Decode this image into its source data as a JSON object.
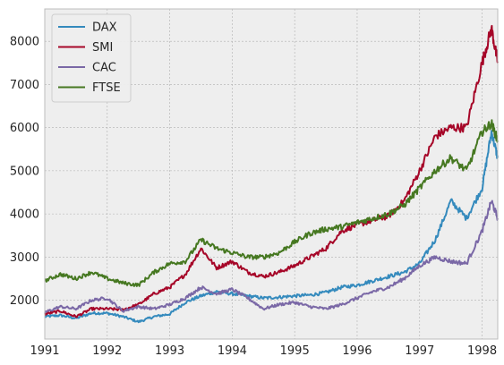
{
  "colors": {
    "background": "#eeeeee",
    "grid": "#b0b0b0",
    "DAX": "#348abd",
    "SMI": "#a60628",
    "CAC": "#7a68a6",
    "FTSE": "#467821"
  },
  "chart_data": {
    "type": "line",
    "title": "",
    "xlabel": "",
    "ylabel": "",
    "xlim": [
      1991.0,
      1998.25
    ],
    "ylim": [
      1100,
      8750
    ],
    "grid": true,
    "legend_position": "top-left",
    "x_ticks": [
      1991,
      1992,
      1993,
      1994,
      1995,
      1996,
      1997,
      1998
    ],
    "y_ticks": [
      2000,
      3000,
      4000,
      5000,
      6000,
      7000,
      8000
    ],
    "series": [
      {
        "name": "DAX",
        "color_key": "DAX",
        "x": [
          1991.0,
          1991.25,
          1991.5,
          1991.75,
          1992.0,
          1992.25,
          1992.5,
          1992.75,
          1993.0,
          1993.25,
          1993.5,
          1993.75,
          1994.0,
          1994.25,
          1994.5,
          1994.75,
          1995.0,
          1995.25,
          1995.5,
          1995.75,
          1996.0,
          1996.25,
          1996.5,
          1996.75,
          1997.0,
          1997.25,
          1997.5,
          1997.75,
          1998.0,
          1998.15,
          1998.25
        ],
        "y": [
          1620,
          1650,
          1580,
          1700,
          1700,
          1620,
          1500,
          1620,
          1680,
          1950,
          2100,
          2200,
          2150,
          2100,
          2050,
          2070,
          2100,
          2120,
          2180,
          2300,
          2350,
          2450,
          2550,
          2650,
          2850,
          3400,
          4300,
          3900,
          4600,
          5900,
          5300
        ]
      },
      {
        "name": "SMI",
        "color_key": "SMI",
        "x": [
          1991.0,
          1991.25,
          1991.5,
          1991.75,
          1992.0,
          1992.25,
          1992.5,
          1992.75,
          1993.0,
          1993.25,
          1993.5,
          1993.75,
          1994.0,
          1994.25,
          1994.5,
          1994.75,
          1995.0,
          1995.25,
          1995.5,
          1995.75,
          1996.0,
          1996.25,
          1996.5,
          1996.75,
          1997.0,
          1997.25,
          1997.5,
          1997.75,
          1998.0,
          1998.15,
          1998.25
        ],
        "y": [
          1680,
          1750,
          1620,
          1800,
          1800,
          1780,
          1900,
          2150,
          2300,
          2600,
          3200,
          2750,
          2900,
          2650,
          2550,
          2650,
          2800,
          3000,
          3200,
          3600,
          3750,
          3850,
          3950,
          4300,
          5000,
          5800,
          6000,
          6000,
          7500,
          8300,
          7500
        ]
      },
      {
        "name": "CAC",
        "color_key": "CAC",
        "x": [
          1991.0,
          1991.25,
          1991.5,
          1991.75,
          1992.0,
          1992.25,
          1992.5,
          1992.75,
          1993.0,
          1993.25,
          1993.5,
          1993.75,
          1994.0,
          1994.25,
          1994.5,
          1994.75,
          1995.0,
          1995.25,
          1995.5,
          1995.75,
          1996.0,
          1996.25,
          1996.5,
          1996.75,
          1997.0,
          1997.25,
          1997.5,
          1997.75,
          1998.0,
          1998.15,
          1998.25
        ],
        "y": [
          1720,
          1850,
          1800,
          2000,
          2050,
          1750,
          1850,
          1800,
          1900,
          2050,
          2300,
          2150,
          2250,
          2050,
          1800,
          1900,
          1950,
          1850,
          1800,
          1900,
          2050,
          2200,
          2300,
          2500,
          2800,
          3000,
          2900,
          2850,
          3600,
          4300,
          3900
        ]
      },
      {
        "name": "FTSE",
        "color_key": "FTSE",
        "x": [
          1991.0,
          1991.25,
          1991.5,
          1991.75,
          1992.0,
          1992.25,
          1992.5,
          1992.75,
          1993.0,
          1993.25,
          1993.5,
          1993.75,
          1994.0,
          1994.25,
          1994.5,
          1994.75,
          1995.0,
          1995.25,
          1995.5,
          1995.75,
          1996.0,
          1996.25,
          1996.5,
          1996.75,
          1997.0,
          1997.25,
          1997.5,
          1997.75,
          1998.0,
          1998.15,
          1998.25
        ],
        "y": [
          2450,
          2600,
          2500,
          2650,
          2500,
          2400,
          2350,
          2650,
          2850,
          2900,
          3400,
          3200,
          3100,
          3000,
          3000,
          3100,
          3350,
          3550,
          3650,
          3700,
          3800,
          3900,
          4000,
          4200,
          4600,
          5000,
          5300,
          5000,
          5900,
          6100,
          5700
        ]
      }
    ]
  }
}
